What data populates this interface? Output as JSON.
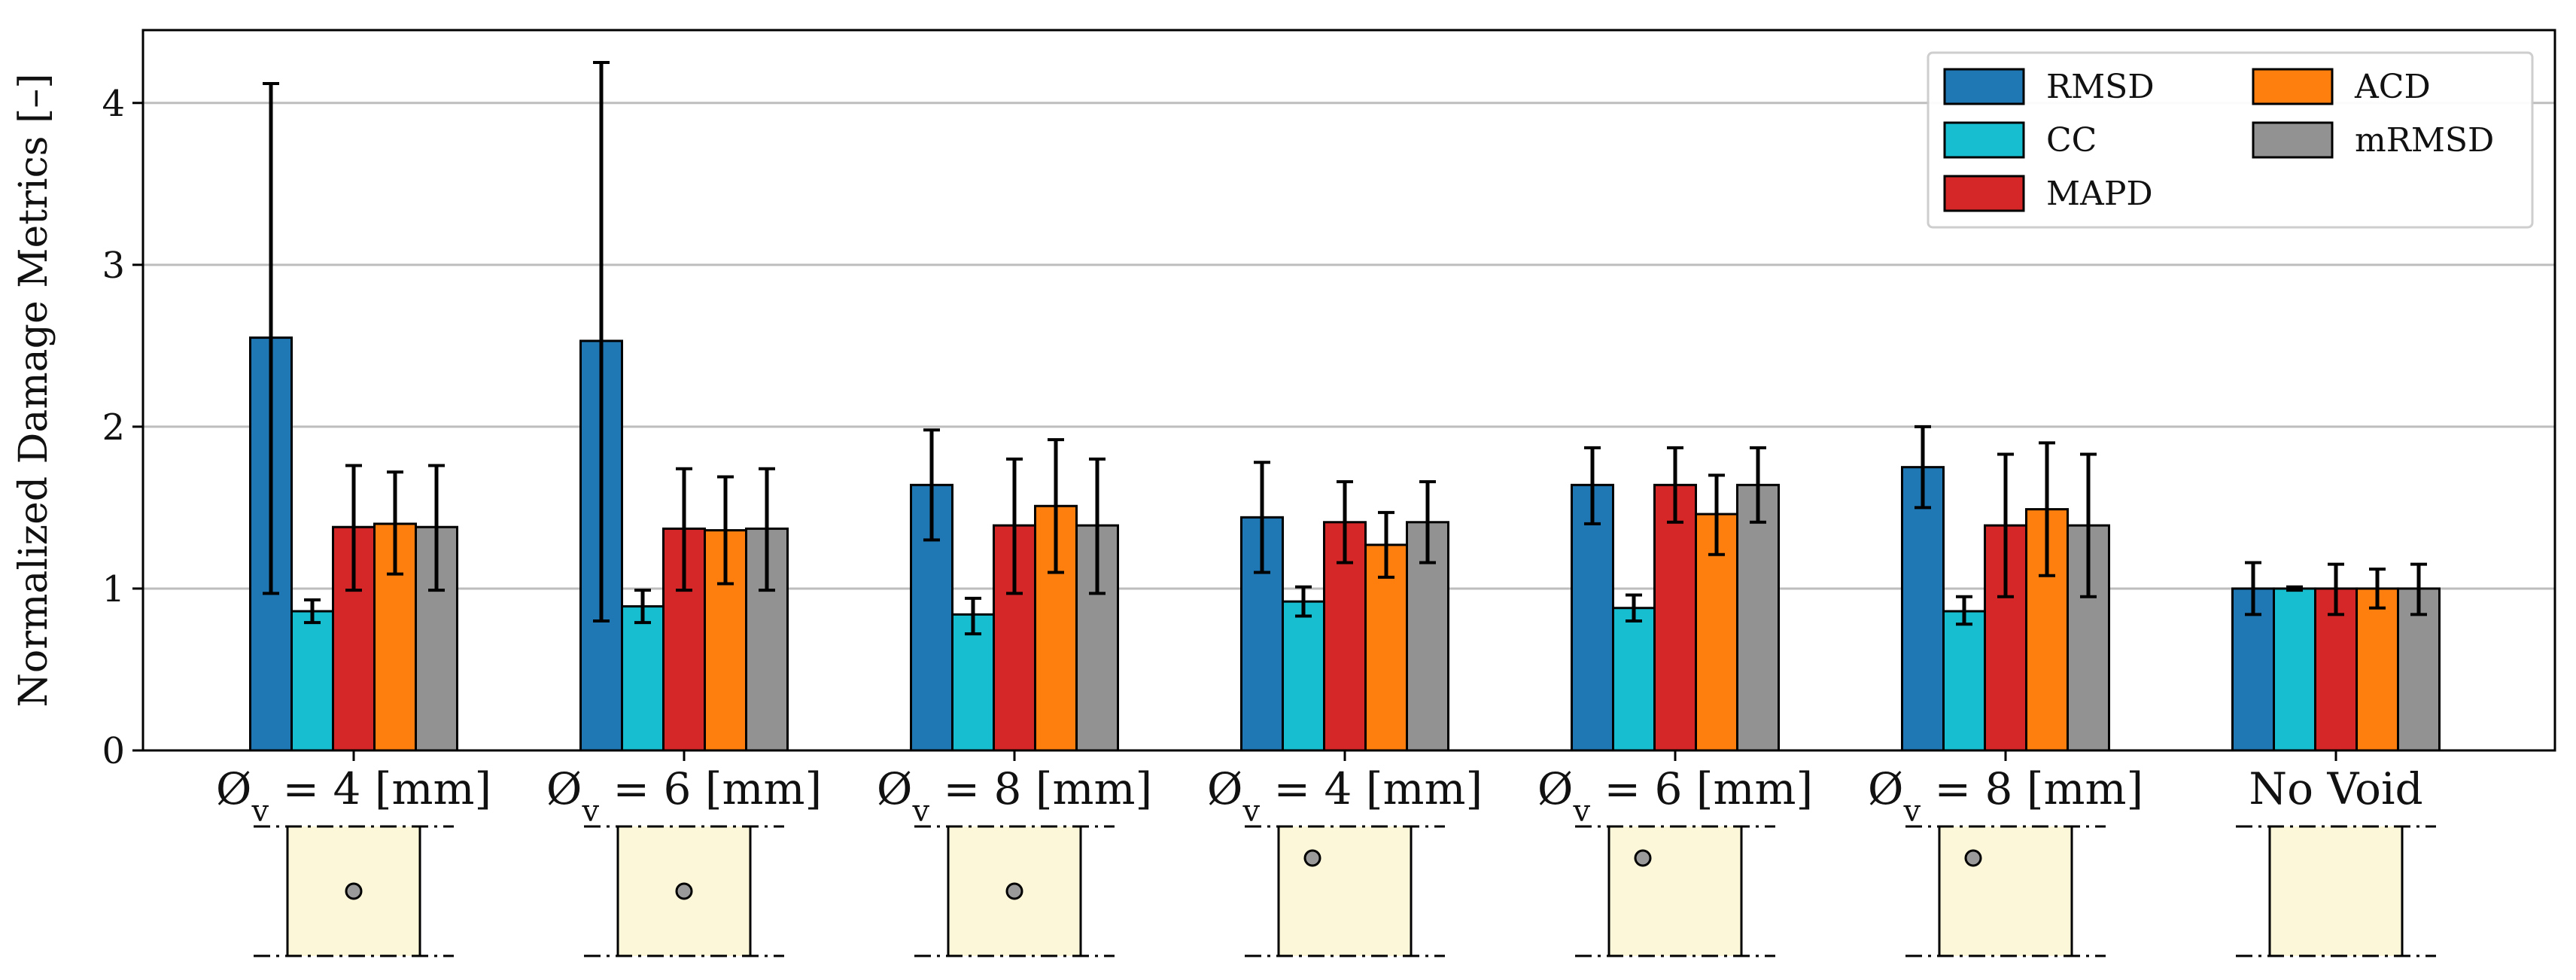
{
  "chart_data": {
    "type": "bar",
    "ylabel": "Normalized Damage Metrics [–]",
    "ylim": [
      0,
      4.45
    ],
    "yticks": [
      "0",
      "1",
      "2",
      "3",
      "4"
    ],
    "grid": "y",
    "legend_position": "top-right",
    "categories": [
      "Øv = 4 [mm]",
      "Øv = 6 [mm]",
      "Øv = 8 [mm]",
      "Øv = 4 [mm]",
      "Øv = 6 [mm]",
      "Øv = 8 [mm]",
      "No Void"
    ],
    "category_parts": [
      {
        "main": "Ø",
        "sub": "v",
        "rest": " = 4 [mm]"
      },
      {
        "main": "Ø",
        "sub": "v",
        "rest": " = 6 [mm]"
      },
      {
        "main": "Ø",
        "sub": "v",
        "rest": " = 8 [mm]"
      },
      {
        "main": "Ø",
        "sub": "v",
        "rest": " = 4 [mm]"
      },
      {
        "main": "Ø",
        "sub": "v",
        "rest": " = 6 [mm]"
      },
      {
        "main": "Ø",
        "sub": "v",
        "rest": " = 8 [mm]"
      },
      {
        "main": "No Void",
        "sub": "",
        "rest": ""
      }
    ],
    "void_position": [
      "center",
      "center",
      "center",
      "corner",
      "corner",
      "corner",
      "none"
    ],
    "series": [
      {
        "name": "RMSD",
        "color": "#1f77b4",
        "values": [
          2.55,
          2.53,
          1.64,
          1.44,
          1.64,
          1.75,
          1.0
        ],
        "err_low": [
          0.97,
          0.8,
          1.3,
          1.1,
          1.4,
          1.5,
          0.84
        ],
        "err_high": [
          4.12,
          4.25,
          1.98,
          1.78,
          1.87,
          2.0,
          1.16
        ]
      },
      {
        "name": "CC",
        "color": "#17becf",
        "values": [
          0.86,
          0.89,
          0.84,
          0.92,
          0.88,
          0.86,
          1.0
        ],
        "err_low": [
          0.79,
          0.79,
          0.72,
          0.83,
          0.8,
          0.78,
          0.99
        ],
        "err_high": [
          0.93,
          0.99,
          0.94,
          1.01,
          0.96,
          0.95,
          1.01
        ]
      },
      {
        "name": "MAPD",
        "color": "#d62728",
        "values": [
          1.38,
          1.37,
          1.39,
          1.41,
          1.64,
          1.39,
          1.0
        ],
        "err_low": [
          0.99,
          0.99,
          0.97,
          1.16,
          1.41,
          0.95,
          0.84
        ],
        "err_high": [
          1.76,
          1.74,
          1.8,
          1.66,
          1.87,
          1.83,
          1.15
        ]
      },
      {
        "name": "ACD",
        "color": "#ff7f0e",
        "values": [
          1.4,
          1.36,
          1.51,
          1.27,
          1.46,
          1.49,
          1.0
        ],
        "err_low": [
          1.09,
          1.03,
          1.1,
          1.07,
          1.21,
          1.08,
          0.88
        ],
        "err_high": [
          1.72,
          1.69,
          1.92,
          1.47,
          1.7,
          1.9,
          1.12
        ]
      },
      {
        "name": "mRMSD",
        "color": "#929292",
        "values": [
          1.38,
          1.37,
          1.39,
          1.41,
          1.64,
          1.39,
          1.0
        ],
        "err_low": [
          0.99,
          0.99,
          0.97,
          1.16,
          1.41,
          0.95,
          0.84
        ],
        "err_high": [
          1.76,
          1.74,
          1.8,
          1.66,
          1.87,
          1.83,
          1.15
        ]
      }
    ],
    "legend_order": [
      0,
      3,
      1,
      4,
      2
    ]
  }
}
